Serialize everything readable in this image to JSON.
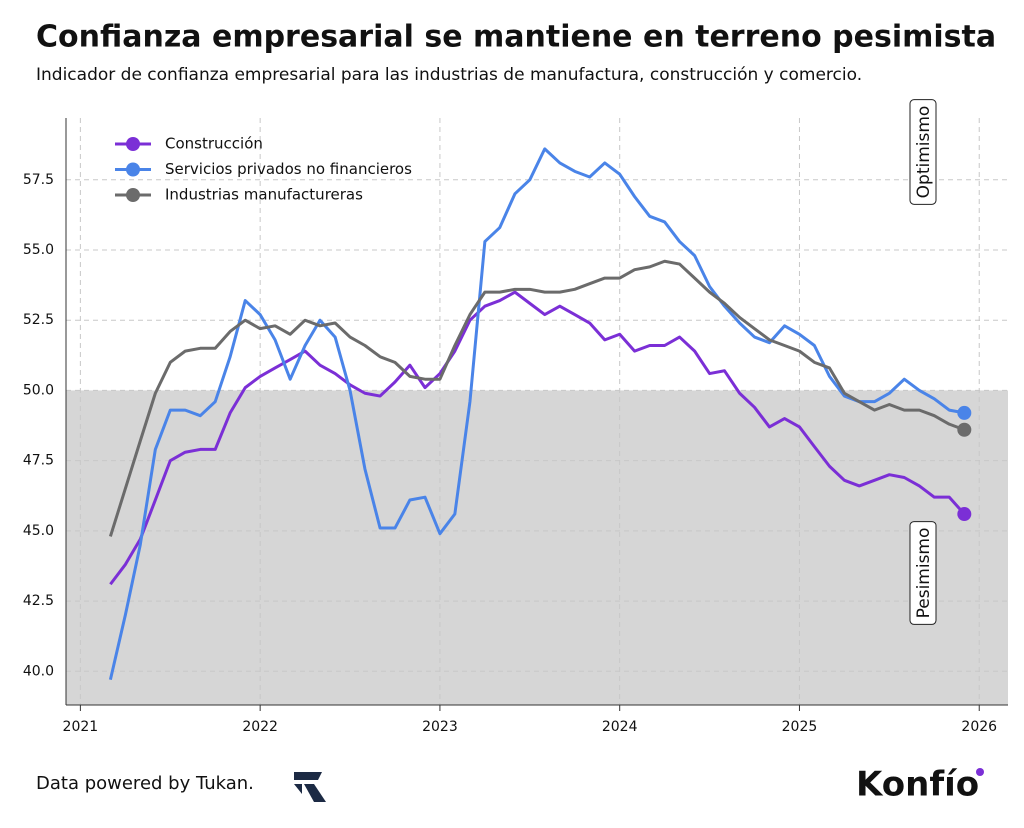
{
  "chart_data": {
    "type": "line",
    "title": "Confianza empresarial se mantiene en terreno pesimista",
    "subtitle": "Indicador de confianza empresarial para las industrias de manufactura, construcción y comercio.",
    "x": [
      2021.167,
      2021.25,
      2021.333,
      2021.417,
      2021.5,
      2021.583,
      2021.667,
      2021.75,
      2021.833,
      2021.917,
      2022.0,
      2022.083,
      2022.167,
      2022.25,
      2022.333,
      2022.417,
      2022.5,
      2022.583,
      2022.667,
      2022.75,
      2022.833,
      2022.917,
      2023.0,
      2023.083,
      2023.167,
      2023.25,
      2023.333,
      2023.417,
      2023.5,
      2023.583,
      2023.667,
      2023.75,
      2023.833,
      2023.917,
      2024.0,
      2024.083,
      2024.167,
      2024.25,
      2024.333,
      2024.417,
      2024.5,
      2024.583,
      2024.667,
      2024.75,
      2024.833,
      2024.917,
      2025.0,
      2025.083,
      2025.167,
      2025.25,
      2025.333,
      2025.417,
      2025.5,
      2025.583,
      2025.667,
      2025.75,
      2025.833,
      2025.917
    ],
    "series": [
      {
        "name": "Construcción",
        "color": "#7b2fd6",
        "values": [
          43.1,
          43.8,
          44.7,
          46.1,
          47.5,
          47.8,
          47.9,
          47.9,
          49.2,
          50.1,
          50.5,
          50.8,
          51.1,
          51.4,
          50.9,
          50.6,
          50.2,
          49.9,
          49.8,
          50.3,
          50.9,
          50.1,
          50.6,
          51.4,
          52.5,
          53.0,
          53.2,
          53.5,
          53.1,
          52.7,
          53.0,
          52.7,
          52.4,
          51.8,
          52.0,
          51.4,
          51.6,
          51.6,
          51.9,
          51.4,
          50.6,
          50.7,
          49.9,
          49.4,
          48.7,
          49.0,
          48.7,
          48.0,
          47.3,
          46.8,
          46.6,
          46.8,
          47.0,
          46.9,
          46.6,
          46.2,
          46.2,
          45.6
        ]
      },
      {
        "name": "Servicios privados no financieros",
        "color": "#4a84e8",
        "values": [
          39.7,
          42.0,
          44.5,
          47.9,
          49.3,
          49.3,
          49.1,
          49.6,
          51.2,
          53.2,
          52.7,
          51.8,
          50.4,
          51.6,
          52.5,
          51.9,
          50.0,
          47.2,
          45.1,
          45.1,
          46.1,
          46.2,
          44.9,
          45.6,
          49.6,
          55.3,
          55.8,
          57.0,
          57.5,
          58.6,
          58.1,
          57.8,
          57.6,
          58.1,
          57.7,
          56.9,
          56.2,
          56.0,
          55.3,
          54.8,
          53.7,
          53.0,
          52.4,
          51.9,
          51.7,
          52.3,
          52.0,
          51.6,
          50.5,
          49.8,
          49.6,
          49.6,
          49.9,
          50.4,
          50.0,
          49.7,
          49.3,
          49.2
        ]
      },
      {
        "name": "Industrias manufactureras",
        "color": "#6b6b6b",
        "values": [
          44.8,
          46.5,
          48.2,
          49.9,
          51.0,
          51.4,
          51.5,
          51.5,
          52.1,
          52.5,
          52.2,
          52.3,
          52.0,
          52.5,
          52.3,
          52.4,
          51.9,
          51.6,
          51.2,
          51.0,
          50.5,
          50.4,
          50.4,
          51.6,
          52.7,
          53.5,
          53.5,
          53.6,
          53.6,
          53.5,
          53.5,
          53.6,
          53.8,
          54.0,
          54.0,
          54.3,
          54.4,
          54.6,
          54.5,
          54.0,
          53.5,
          53.1,
          52.6,
          52.2,
          51.8,
          51.6,
          51.4,
          51.0,
          50.8,
          49.9,
          49.6,
          49.3,
          49.5,
          49.3,
          49.3,
          49.1,
          48.8,
          48.6
        ]
      }
    ],
    "xlim": [
      2020.92,
      2026.16
    ],
    "ylim": [
      38.8,
      59.7
    ],
    "xticks": [
      2021,
      2022,
      2023,
      2024,
      2025,
      2026
    ],
    "yticks": [
      {
        "value": 40,
        "label": "40.0"
      },
      42.5,
      {
        "value": 45,
        "label": "45.0"
      },
      47.5,
      {
        "value": 50,
        "label": "50.0"
      },
      52.5,
      {
        "value": 55,
        "label": "55.0"
      },
      57.5
    ],
    "grid": true,
    "legend": "upper-left",
    "threshold": 50,
    "threshold_color": "#d6d6d6",
    "end_marker": true,
    "annotations": [
      "Optimismo",
      "Pesimismo"
    ],
    "source": "Data powered by Tukan.",
    "brand": "Konfío"
  }
}
